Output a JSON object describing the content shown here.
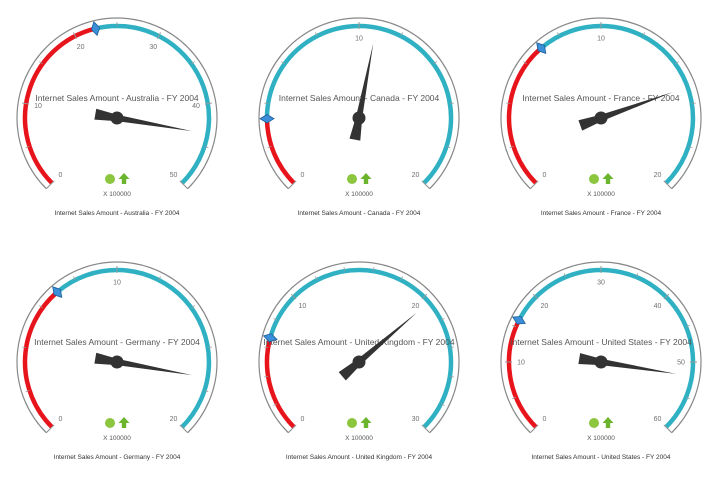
{
  "colors": {
    "below_target": "#e8141c",
    "above_target": "#2fb1c3",
    "needle": "#333333",
    "marker_fill": "#3a8fd8",
    "marker_stroke": "#1f5f9a",
    "status_dot": "#8cc63f",
    "trend_arrow": "#6ab42e",
    "frame": "#888888",
    "ticks": "#999999"
  },
  "status_icons": [
    "status-dot-icon",
    "arrow-up-icon"
  ],
  "gauges": [
    {
      "title": "Internet Sales Amount - Australia - FY 2004",
      "caption": "Internet Sales Amount - Australia - FY 2004",
      "multiplier": "X 100000",
      "scale": {
        "min": 0,
        "max": 50,
        "major_step": 10,
        "minor_step": 5
      },
      "tick_labels": [
        "0",
        "10",
        "20",
        "30",
        "40",
        "50"
      ],
      "target": 22.5,
      "value": 43.5
    },
    {
      "title": "Internet Sales Amount - Canada - FY 2004",
      "caption": "Internet Sales Amount - Canada - FY 2004",
      "multiplier": "X 100000",
      "scale": {
        "min": 0,
        "max": 20,
        "major_step": 10,
        "minor_step": 2
      },
      "tick_labels": [
        "0",
        "10",
        "20"
      ],
      "target": 3.3,
      "value": 10.8
    },
    {
      "title": "Internet Sales Amount - France - FY 2004",
      "caption": "Internet Sales Amount - France - FY 2004",
      "multiplier": "X 100000",
      "scale": {
        "min": 0,
        "max": 20,
        "major_step": 10,
        "minor_step": 2
      },
      "tick_labels": [
        "0",
        "10",
        "20"
      ],
      "target": 7.0,
      "value": 15.2
    },
    {
      "title": "Internet Sales Amount - Germany - FY 2004",
      "caption": "Internet Sales Amount - Germany - FY 2004",
      "multiplier": "X 100000",
      "scale": {
        "min": 0,
        "max": 20,
        "major_step": 10,
        "minor_step": 2
      },
      "tick_labels": [
        "0",
        "10",
        "20"
      ],
      "target": 7.0,
      "value": 17.4
    },
    {
      "title": "Internet Sales Amount - United Kingdom - FY 2004",
      "caption": "Internet Sales Amount - United Kingdom - FY 2004",
      "multiplier": "X 100000",
      "scale": {
        "min": 0,
        "max": 30,
        "major_step": 10,
        "minor_step": 2
      },
      "tick_labels": [
        "0",
        "10",
        "20",
        "30"
      ],
      "target": 6.7,
      "value": 20.5
    },
    {
      "title": "Internet Sales Amount - United States - FY 2004",
      "caption": "Internet Sales Amount - United States - FY 2004",
      "multiplier": "X 100000",
      "scale": {
        "min": 0,
        "max": 60,
        "major_step": 10,
        "minor_step": 5
      },
      "tick_labels": [
        "0",
        "10",
        "20",
        "30",
        "40",
        "50",
        "60"
      ],
      "target": 16.0,
      "value": 52.0
    }
  ]
}
